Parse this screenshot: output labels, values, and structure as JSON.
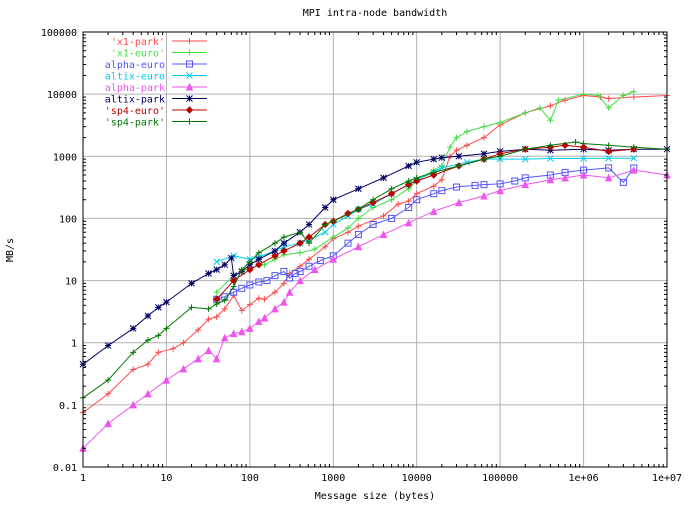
{
  "chart_data": {
    "type": "line",
    "title": "MPI intra-node bandwidth",
    "xlabel": "Message size (bytes)",
    "ylabel": "MB/s",
    "x_scale": "log",
    "y_scale": "log",
    "xlim": [
      1,
      10000000
    ],
    "ylim": [
      0.01,
      100000
    ],
    "grid": true,
    "legend_position": "top-left",
    "x_ticks": [
      {
        "v": 1,
        "label": "1"
      },
      {
        "v": 10,
        "label": "10"
      },
      {
        "v": 100,
        "label": "100"
      },
      {
        "v": 1000,
        "label": "1000"
      },
      {
        "v": 10000,
        "label": "10000"
      },
      {
        "v": 100000,
        "label": "100000"
      },
      {
        "v": 1000000,
        "label": "1e+06"
      },
      {
        "v": 10000000,
        "label": "1e+07"
      }
    ],
    "y_ticks": [
      {
        "v": 0.01,
        "label": "0.01"
      },
      {
        "v": 0.1,
        "label": "0.1"
      },
      {
        "v": 1,
        "label": "1"
      },
      {
        "v": 10,
        "label": "10"
      },
      {
        "v": 100,
        "label": "100"
      },
      {
        "v": 1000,
        "label": "1000"
      },
      {
        "v": 10000,
        "label": "10000"
      },
      {
        "v": 100000,
        "label": "100000"
      }
    ],
    "series": [
      {
        "name": "'x1-park'",
        "color": "#ff4a4a",
        "marker": "plus",
        "points": [
          [
            1,
            0.075
          ],
          [
            2,
            0.15
          ],
          [
            4,
            0.37
          ],
          [
            6,
            0.45
          ],
          [
            8,
            0.7
          ],
          [
            12,
            0.8
          ],
          [
            16,
            1.0
          ],
          [
            24,
            1.6
          ],
          [
            32,
            2.4
          ],
          [
            40,
            2.6
          ],
          [
            50,
            3.5
          ],
          [
            64,
            5.8
          ],
          [
            80,
            3.3
          ],
          [
            100,
            4.1
          ],
          [
            128,
            5.2
          ],
          [
            150,
            5.0
          ],
          [
            200,
            6.5
          ],
          [
            256,
            9.0
          ],
          [
            300,
            13
          ],
          [
            400,
            17
          ],
          [
            512,
            22
          ],
          [
            800,
            35
          ],
          [
            1000,
            47
          ],
          [
            1500,
            60
          ],
          [
            2000,
            75
          ],
          [
            4000,
            110
          ],
          [
            6000,
            170
          ],
          [
            8000,
            190
          ],
          [
            10000,
            250
          ],
          [
            16000,
            330
          ],
          [
            20000,
            420
          ],
          [
            25000,
            1000
          ],
          [
            30000,
            1250
          ],
          [
            40000,
            1500
          ],
          [
            64000,
            2000
          ],
          [
            100000,
            3200
          ],
          [
            200000,
            5000
          ],
          [
            400000,
            6500
          ],
          [
            600000,
            8000
          ],
          [
            1000000,
            9500
          ],
          [
            1600000,
            9000
          ],
          [
            2000000,
            8500
          ],
          [
            4000000,
            9000
          ],
          [
            10000000,
            9500
          ]
        ]
      },
      {
        "name": "'x1-euro'",
        "color": "#44dd44",
        "marker": "plus",
        "points": [
          [
            40,
            6.5
          ],
          [
            64,
            12
          ],
          [
            100,
            16
          ],
          [
            150,
            18
          ],
          [
            200,
            22
          ],
          [
            256,
            26
          ],
          [
            400,
            28
          ],
          [
            600,
            32
          ],
          [
            1000,
            50
          ],
          [
            1500,
            70
          ],
          [
            2000,
            100
          ],
          [
            3000,
            150
          ],
          [
            5000,
            200
          ],
          [
            8000,
            300
          ],
          [
            10000,
            400
          ],
          [
            16000,
            600
          ],
          [
            20000,
            700
          ],
          [
            25000,
            1400
          ],
          [
            30000,
            2000
          ],
          [
            40000,
            2500
          ],
          [
            64000,
            3000
          ],
          [
            100000,
            3500
          ],
          [
            200000,
            5000
          ],
          [
            300000,
            6000
          ],
          [
            400000,
            3800
          ],
          [
            500000,
            8000
          ],
          [
            1000000,
            10000
          ],
          [
            1500000,
            9500
          ],
          [
            2000000,
            6000
          ],
          [
            3000000,
            9500
          ],
          [
            4000000,
            11000
          ]
        ]
      },
      {
        "name": "alpha-euro",
        "color": "#5555ff",
        "marker": "square",
        "points": [
          [
            40,
            5
          ],
          [
            50,
            5.5
          ],
          [
            64,
            6.5
          ],
          [
            80,
            7.5
          ],
          [
            100,
            8.5
          ],
          [
            128,
            9.5
          ],
          [
            160,
            10
          ],
          [
            200,
            12
          ],
          [
            256,
            14
          ],
          [
            300,
            11
          ],
          [
            350,
            13
          ],
          [
            400,
            14
          ],
          [
            512,
            17
          ],
          [
            700,
            21
          ],
          [
            1000,
            25
          ],
          [
            1500,
            40
          ],
          [
            2000,
            55
          ],
          [
            3000,
            80
          ],
          [
            5000,
            100
          ],
          [
            8000,
            150
          ],
          [
            10000,
            200
          ],
          [
            16000,
            250
          ],
          [
            20000,
            280
          ],
          [
            30000,
            320
          ],
          [
            50000,
            340
          ],
          [
            64000,
            350
          ],
          [
            100000,
            360
          ],
          [
            150000,
            400
          ],
          [
            200000,
            450
          ],
          [
            400000,
            500
          ],
          [
            600000,
            550
          ],
          [
            1000000,
            600
          ],
          [
            2000000,
            650
          ],
          [
            3000000,
            380
          ],
          [
            4000000,
            650
          ]
        ]
      },
      {
        "name": "altix-euro",
        "color": "#00ccee",
        "marker": "cross",
        "points": [
          [
            40,
            20
          ],
          [
            64,
            25
          ],
          [
            100,
            22
          ],
          [
            128,
            24
          ],
          [
            200,
            30
          ],
          [
            256,
            35
          ],
          [
            400,
            40
          ],
          [
            512,
            45
          ],
          [
            800,
            60
          ],
          [
            1000,
            80
          ],
          [
            1500,
            110
          ],
          [
            2000,
            140
          ],
          [
            3000,
            170
          ],
          [
            5000,
            250
          ],
          [
            8000,
            350
          ],
          [
            10000,
            420
          ],
          [
            16000,
            550
          ],
          [
            20000,
            650
          ],
          [
            40000,
            800
          ],
          [
            64000,
            900
          ],
          [
            100000,
            900
          ],
          [
            200000,
            900
          ],
          [
            400000,
            920
          ],
          [
            1000000,
            920
          ],
          [
            2000000,
            930
          ],
          [
            4000000,
            930
          ]
        ]
      },
      {
        "name": "alpha-park",
        "color": "#ee55ee",
        "marker": "triangle",
        "points": [
          [
            1,
            0.02
          ],
          [
            2,
            0.05
          ],
          [
            4,
            0.1
          ],
          [
            6,
            0.15
          ],
          [
            10,
            0.25
          ],
          [
            16,
            0.38
          ],
          [
            24,
            0.55
          ],
          [
            32,
            0.75
          ],
          [
            40,
            0.55
          ],
          [
            50,
            1.2
          ],
          [
            64,
            1.4
          ],
          [
            80,
            1.5
          ],
          [
            100,
            1.7
          ],
          [
            128,
            2.2
          ],
          [
            150,
            2.5
          ],
          [
            200,
            3.5
          ],
          [
            256,
            4.5
          ],
          [
            300,
            6.5
          ],
          [
            400,
            10
          ],
          [
            600,
            15
          ],
          [
            1000,
            22
          ],
          [
            2000,
            35
          ],
          [
            4000,
            55
          ],
          [
            8000,
            85
          ],
          [
            16000,
            130
          ],
          [
            32000,
            180
          ],
          [
            64000,
            230
          ],
          [
            100000,
            280
          ],
          [
            200000,
            350
          ],
          [
            400000,
            420
          ],
          [
            600000,
            450
          ],
          [
            1000000,
            500
          ],
          [
            2000000,
            450
          ],
          [
            4000000,
            600
          ],
          [
            10000000,
            500
          ]
        ]
      },
      {
        "name": "altix-park",
        "color": "#000066",
        "marker": "star",
        "points": [
          [
            1,
            0.45
          ],
          [
            2,
            0.9
          ],
          [
            4,
            1.7
          ],
          [
            6,
            2.7
          ],
          [
            8,
            3.7
          ],
          [
            10,
            4.5
          ],
          [
            20,
            9
          ],
          [
            32,
            13
          ],
          [
            40,
            15
          ],
          [
            50,
            18
          ],
          [
            60,
            23
          ],
          [
            64,
            12
          ],
          [
            80,
            14
          ],
          [
            100,
            18
          ],
          [
            128,
            22
          ],
          [
            200,
            30
          ],
          [
            256,
            40
          ],
          [
            400,
            60
          ],
          [
            512,
            80
          ],
          [
            800,
            150
          ],
          [
            1000,
            200
          ],
          [
            2000,
            300
          ],
          [
            4000,
            450
          ],
          [
            8000,
            700
          ],
          [
            10000,
            800
          ],
          [
            16000,
            900
          ],
          [
            20000,
            950
          ],
          [
            32000,
            1000
          ],
          [
            64000,
            1100
          ],
          [
            100000,
            1200
          ],
          [
            200000,
            1300
          ],
          [
            400000,
            1250
          ],
          [
            1000000,
            1300
          ],
          [
            2000000,
            1250
          ],
          [
            4000000,
            1300
          ],
          [
            10000000,
            1300
          ]
        ]
      },
      {
        "name": "'sp4-euro'",
        "color": "#bb0000",
        "marker": "diamond",
        "points": [
          [
            40,
            5
          ],
          [
            64,
            10
          ],
          [
            100,
            15
          ],
          [
            128,
            18
          ],
          [
            200,
            25
          ],
          [
            256,
            30
          ],
          [
            400,
            40
          ],
          [
            512,
            50
          ],
          [
            800,
            80
          ],
          [
            1000,
            90
          ],
          [
            1500,
            120
          ],
          [
            2000,
            140
          ],
          [
            3000,
            180
          ],
          [
            5000,
            250
          ],
          [
            8000,
            350
          ],
          [
            10000,
            400
          ],
          [
            16000,
            500
          ],
          [
            32000,
            700
          ],
          [
            64000,
            900
          ],
          [
            100000,
            1100
          ],
          [
            200000,
            1300
          ],
          [
            400000,
            1400
          ],
          [
            600000,
            1500
          ],
          [
            1000000,
            1400
          ],
          [
            2000000,
            1200
          ],
          [
            4000000,
            1300
          ]
        ]
      },
      {
        "name": "'sp4-park'",
        "color": "#007700",
        "marker": "plus",
        "points": [
          [
            1,
            0.13
          ],
          [
            2,
            0.25
          ],
          [
            4,
            0.7
          ],
          [
            6,
            1.1
          ],
          [
            8,
            1.3
          ],
          [
            10,
            1.7
          ],
          [
            20,
            3.7
          ],
          [
            32,
            3.5
          ],
          [
            40,
            4.2
          ],
          [
            50,
            4.8
          ],
          [
            64,
            8
          ],
          [
            80,
            15
          ],
          [
            100,
            20
          ],
          [
            128,
            28
          ],
          [
            200,
            40
          ],
          [
            256,
            50
          ],
          [
            400,
            60
          ],
          [
            512,
            40
          ],
          [
            800,
            80
          ],
          [
            1000,
            90
          ],
          [
            2000,
            140
          ],
          [
            3000,
            200
          ],
          [
            5000,
            300
          ],
          [
            8000,
            400
          ],
          [
            10000,
            450
          ],
          [
            16000,
            550
          ],
          [
            32000,
            700
          ],
          [
            64000,
            900
          ],
          [
            100000,
            1000
          ],
          [
            200000,
            1300
          ],
          [
            400000,
            1500
          ],
          [
            800000,
            1700
          ],
          [
            1000000,
            1600
          ],
          [
            2000000,
            1500
          ],
          [
            4000000,
            1400
          ],
          [
            10000000,
            1300
          ]
        ]
      }
    ]
  }
}
